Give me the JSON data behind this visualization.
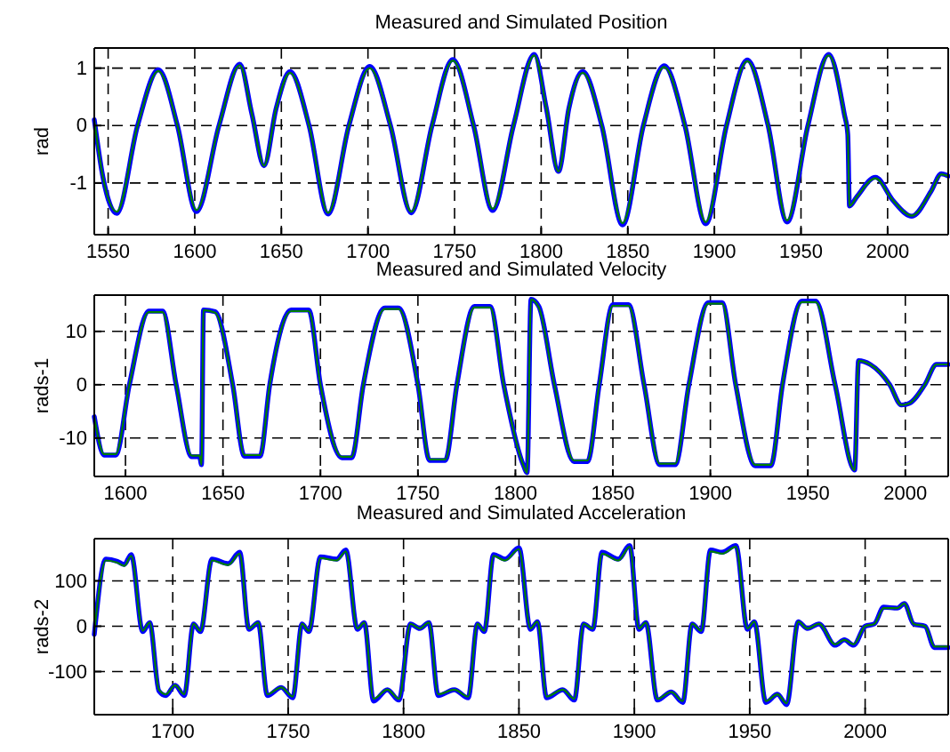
{
  "chart_data": [
    {
      "type": "line",
      "title": "Measured and Simulated Position",
      "ylabel": "rad",
      "xlim": [
        1542,
        2035
      ],
      "ylim": [
        -1.9,
        1.35
      ],
      "xticks": [
        1550,
        1600,
        1650,
        1700,
        1750,
        1800,
        1850,
        1900,
        1950,
        2000
      ],
      "yticks": [
        -1,
        0,
        1
      ],
      "grid": true,
      "series": [
        {
          "color": "#0000ff",
          "x": [
            1542,
            1547,
            1555,
            1567,
            1579,
            1590,
            1601,
            1614,
            1626,
            1633,
            1640,
            1647,
            1655,
            1666,
            1677,
            1689,
            1701,
            1713,
            1725,
            1737,
            1749,
            1761,
            1772,
            1784,
            1796,
            1803,
            1810,
            1816,
            1824,
            1835,
            1847,
            1859,
            1871,
            1883,
            1895,
            1907,
            1919,
            1931,
            1942,
            1954,
            1966,
            1975,
            1977,
            1978,
            1982,
            1993,
            2003,
            2014,
            2025,
            2031,
            2035
          ],
          "values": [
            0.1,
            -0.9,
            -1.53,
            0,
            0.97,
            0,
            -1.5,
            0,
            1.07,
            0.2,
            -0.7,
            0.3,
            0.94,
            0,
            -1.54,
            0,
            1.03,
            0,
            -1.52,
            0,
            1.15,
            0,
            -1.48,
            0,
            1.24,
            0.3,
            -0.8,
            0.3,
            0.94,
            0,
            -1.73,
            0,
            1.04,
            0,
            -1.71,
            0,
            1.14,
            0,
            -1.68,
            0,
            1.24,
            0.2,
            -0.15,
            -1.4,
            -1.25,
            -0.9,
            -1.3,
            -1.58,
            -1.15,
            -0.84,
            -0.88
          ]
        },
        {
          "color": "#007f00",
          "x": [
            1542,
            1547,
            1555,
            1567,
            1579,
            1590,
            1601,
            1614,
            1626,
            1633,
            1640,
            1647,
            1655,
            1666,
            1677,
            1689,
            1701,
            1713,
            1725,
            1737,
            1749,
            1761,
            1772,
            1784,
            1796,
            1803,
            1810,
            1816,
            1824,
            1835,
            1847,
            1859,
            1871,
            1883,
            1895,
            1907,
            1919,
            1931,
            1942,
            1954,
            1966,
            1975,
            1977,
            1978,
            1982,
            1993,
            2003,
            2014,
            2025,
            2031,
            2035
          ],
          "values": [
            0.1,
            -0.9,
            -1.5,
            0,
            0.95,
            0,
            -1.47,
            0,
            1.05,
            0.2,
            -0.7,
            0.3,
            0.92,
            0,
            -1.52,
            0,
            1.0,
            0,
            -1.5,
            0,
            1.13,
            0,
            -1.45,
            0,
            1.22,
            0.3,
            -0.8,
            0.3,
            0.92,
            0,
            -1.7,
            0,
            1.02,
            0,
            -1.68,
            0,
            1.12,
            0,
            -1.65,
            0,
            1.22,
            0.2,
            -0.15,
            -1.4,
            -1.25,
            -0.92,
            -1.3,
            -1.57,
            -1.15,
            -0.85,
            -0.88
          ]
        }
      ]
    },
    {
      "type": "line",
      "title": "Measured and Simulated Velocity",
      "ylabel": "rads-1",
      "xlim": [
        1584,
        2022
      ],
      "ylim": [
        -17.2,
        16.8
      ],
      "xticks": [
        1600,
        1650,
        1700,
        1750,
        1800,
        1850,
        1900,
        1950,
        2000
      ],
      "yticks": [
        -10,
        0,
        10
      ],
      "grid": true,
      "series": [
        {
          "color": "#0000ff",
          "x": [
            1584,
            1589,
            1595,
            1602,
            1612,
            1619,
            1626,
            1634,
            1638,
            1639,
            1640,
            1646,
            1655,
            1661,
            1669,
            1674,
            1685,
            1694,
            1700,
            1711,
            1716,
            1722,
            1733,
            1740,
            1750,
            1756,
            1764,
            1770,
            1779,
            1787,
            1794,
            1804,
            1806,
            1808,
            1812,
            1820,
            1830,
            1837,
            1843,
            1850,
            1858,
            1866,
            1874,
            1882,
            1889,
            1899,
            1906,
            1913,
            1923,
            1931,
            1937,
            1947,
            1954,
            1964,
            1974,
            1976,
            1982,
            1992,
            1998,
            2002,
            2010,
            2016,
            2022
          ],
          "values": [
            -6,
            -13.2,
            -13.2,
            0,
            13.8,
            13.8,
            0,
            -13.5,
            -13.5,
            -15,
            14,
            13.7,
            0,
            -13.4,
            -13.4,
            0,
            14,
            14,
            0,
            -13.7,
            -13.7,
            0,
            14.4,
            14.4,
            0,
            -14.2,
            -14.2,
            0,
            14.7,
            14.7,
            0,
            -15,
            -16.5,
            16,
            14.7,
            0,
            -14.4,
            -14.4,
            0,
            15,
            15,
            0,
            -15,
            -15,
            0,
            15.4,
            15.4,
            0,
            -15.2,
            -15.2,
            0,
            15.7,
            15.7,
            0,
            -16,
            4.5,
            3.8,
            0,
            -3.8,
            -3.5,
            0,
            3.8,
            3.8
          ]
        },
        {
          "color": "#007f00",
          "x": [
            1584,
            1589,
            1595,
            1602,
            1612,
            1619,
            1626,
            1634,
            1638,
            1639,
            1640,
            1646,
            1655,
            1661,
            1669,
            1674,
            1685,
            1694,
            1700,
            1711,
            1716,
            1722,
            1733,
            1740,
            1750,
            1756,
            1764,
            1770,
            1779,
            1787,
            1794,
            1804,
            1806,
            1808,
            1812,
            1820,
            1830,
            1837,
            1843,
            1850,
            1858,
            1866,
            1874,
            1882,
            1889,
            1899,
            1906,
            1913,
            1923,
            1931,
            1937,
            1947,
            1954,
            1964,
            1974,
            1976,
            1982,
            1992,
            1998,
            2002,
            2010,
            2016,
            2022
          ],
          "values": [
            -6,
            -13,
            -13,
            0,
            13.6,
            13.6,
            0,
            -13.3,
            -13.3,
            -15,
            14,
            13.5,
            0,
            -13.2,
            -13.2,
            0,
            13.8,
            13.8,
            0,
            -13.5,
            -13.5,
            0,
            14.2,
            14.2,
            0,
            -14,
            -14,
            0,
            14.5,
            14.5,
            0,
            -15,
            -16.5,
            16,
            14.5,
            0,
            -14.2,
            -14.2,
            0,
            14.8,
            14.8,
            0,
            -14.8,
            -14.8,
            0,
            15.2,
            15.2,
            0,
            -15,
            -15,
            0,
            15.5,
            15.5,
            0,
            -16,
            4.5,
            3.8,
            0,
            -3.8,
            -3.5,
            0,
            3.8,
            3.8
          ]
        }
      ]
    },
    {
      "type": "line",
      "title": "Measured and Simulated Acceleration",
      "ylabel": "rads-2",
      "xlim": [
        1666,
        2036
      ],
      "ylim": [
        -195,
        193
      ],
      "xticks": [
        1700,
        1750,
        1800,
        1850,
        1900,
        1950,
        2000
      ],
      "yticks": [
        -100,
        0,
        100
      ],
      "grid": true,
      "series": [
        {
          "color": "#0000ff",
          "x": [
            1666,
            1671,
            1676,
            1679,
            1682,
            1687,
            1690,
            1694,
            1697,
            1701,
            1705,
            1709,
            1712,
            1717,
            1724,
            1729,
            1733,
            1737,
            1741,
            1747,
            1752,
            1756,
            1759,
            1764,
            1771,
            1775,
            1780,
            1783,
            1787,
            1793,
            1798,
            1803,
            1807,
            1811,
            1815,
            1822,
            1828,
            1832,
            1835,
            1839,
            1844,
            1850,
            1855,
            1858,
            1862,
            1869,
            1874,
            1878,
            1882,
            1886,
            1893,
            1898,
            1902,
            1905,
            1910,
            1916,
            1921,
            1925,
            1929,
            1933,
            1938,
            1944,
            1949,
            1952,
            1957,
            1962,
            1966,
            1971,
            1975,
            1980,
            1987,
            1991,
            1995,
            2000,
            2004,
            2008,
            2014,
            2017,
            2021,
            2026,
            2030,
            2036
          ],
          "values": [
            -18,
            148,
            143,
            136,
            158,
            -12,
            8,
            -143,
            -153,
            -130,
            -153,
            5,
            -12,
            148,
            138,
            163,
            -7,
            8,
            -153,
            -135,
            -158,
            5,
            -12,
            153,
            148,
            168,
            -7,
            8,
            -165,
            -140,
            -163,
            5,
            -5,
            8,
            -153,
            -140,
            -158,
            5,
            -12,
            158,
            148,
            173,
            -7,
            10,
            -158,
            -140,
            -163,
            5,
            -7,
            163,
            148,
            178,
            -7,
            8,
            -163,
            -145,
            -168,
            5,
            -12,
            168,
            163,
            178,
            -7,
            10,
            -168,
            -150,
            -173,
            10,
            -5,
            5,
            -42,
            -30,
            -42,
            0,
            5,
            42,
            40,
            50,
            5,
            0,
            -47,
            -47
          ]
        },
        {
          "color": "#007f00",
          "x": [
            1666,
            1671,
            1676,
            1679,
            1682,
            1687,
            1690,
            1694,
            1697,
            1701,
            1705,
            1709,
            1712,
            1717,
            1724,
            1729,
            1733,
            1737,
            1741,
            1747,
            1752,
            1756,
            1759,
            1764,
            1771,
            1775,
            1780,
            1783,
            1787,
            1793,
            1798,
            1803,
            1807,
            1811,
            1815,
            1822,
            1828,
            1832,
            1835,
            1839,
            1844,
            1850,
            1855,
            1858,
            1862,
            1869,
            1874,
            1878,
            1882,
            1886,
            1893,
            1898,
            1902,
            1905,
            1910,
            1916,
            1921,
            1925,
            1929,
            1933,
            1938,
            1944,
            1949,
            1952,
            1957,
            1962,
            1966,
            1971,
            1975,
            1980,
            1987,
            1991,
            1995,
            2000,
            2004,
            2008,
            2014,
            2017,
            2021,
            2026,
            2030,
            2036
          ],
          "values": [
            -15,
            145,
            140,
            133,
            155,
            -10,
            8,
            -140,
            -150,
            -130,
            -150,
            5,
            -10,
            145,
            135,
            160,
            -5,
            8,
            -150,
            -135,
            -155,
            5,
            -10,
            150,
            145,
            165,
            -5,
            8,
            -160,
            -140,
            -160,
            5,
            -5,
            8,
            -150,
            -140,
            -155,
            5,
            -10,
            155,
            145,
            170,
            -5,
            10,
            -155,
            -140,
            -160,
            5,
            -5,
            160,
            145,
            175,
            -5,
            8,
            -160,
            -145,
            -165,
            5,
            -10,
            165,
            160,
            175,
            -5,
            10,
            -165,
            -150,
            -170,
            10,
            -5,
            5,
            -40,
            -30,
            -40,
            0,
            5,
            40,
            40,
            50,
            5,
            0,
            -45,
            -45
          ]
        }
      ]
    }
  ]
}
